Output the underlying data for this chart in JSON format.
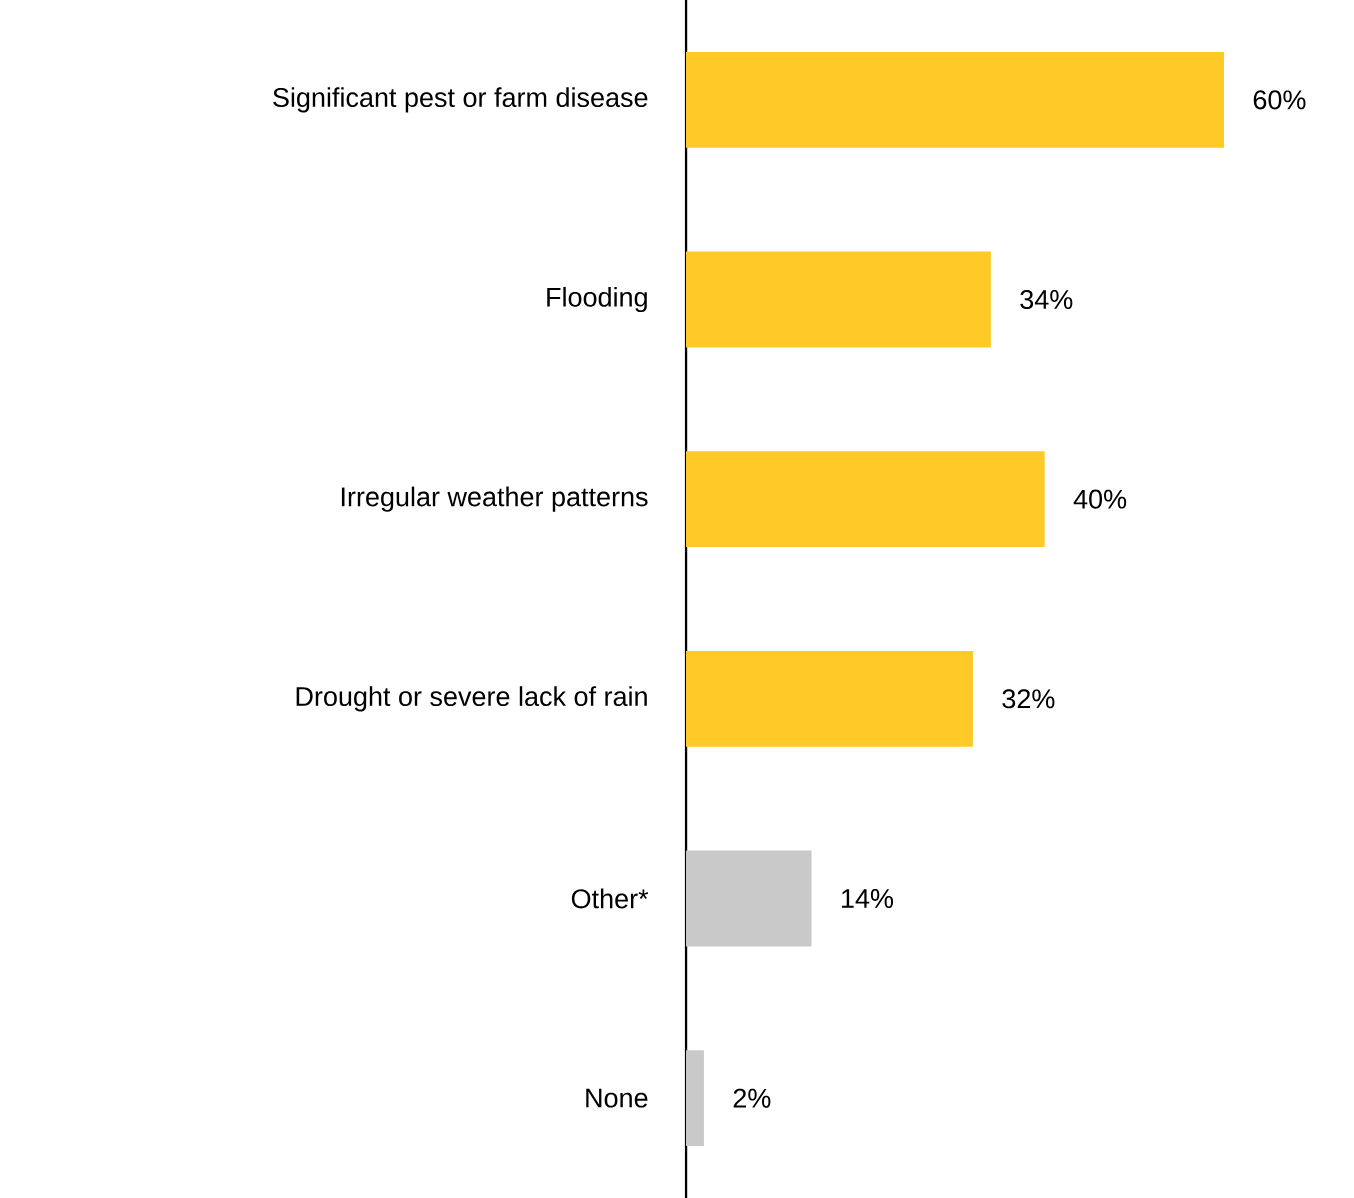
{
  "chart_data": {
    "type": "bar",
    "orientation": "horizontal",
    "categories": [
      "Significant pest or farm disease",
      "Flooding",
      "Irregular weather patterns",
      "Drought or severe lack of rain",
      "Other*",
      "None"
    ],
    "values": [
      60,
      34,
      40,
      32,
      14,
      2
    ],
    "colors": [
      "#ffca28",
      "#ffca28",
      "#ffca28",
      "#ffca28",
      "#c9c9c9",
      "#c9c9c9"
    ],
    "value_labels": [
      "60%",
      "34%",
      "40%",
      "32%",
      "14%",
      "2%"
    ]
  }
}
